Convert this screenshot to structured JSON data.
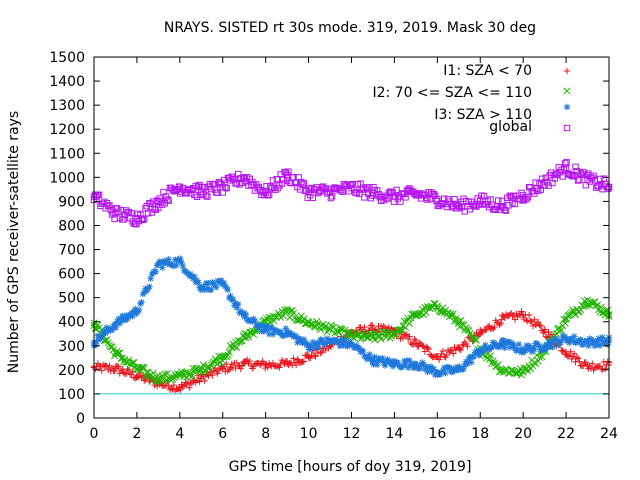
{
  "chart_data": {
    "type": "scatter",
    "title": "NRAYS. SISTED rt 30s mode. 319, 2019. Mask 30 deg",
    "xlabel": "GPS time [hours of doy 319, 2019]",
    "ylabel": "Number of GPS receiver-satellite rays",
    "xlim": [
      0,
      24
    ],
    "ylim": [
      0,
      1500
    ],
    "xticks": [
      0,
      2,
      4,
      6,
      8,
      10,
      12,
      14,
      16,
      18,
      20,
      22,
      24
    ],
    "yticks": [
      0,
      100,
      200,
      300,
      400,
      500,
      600,
      700,
      800,
      900,
      1000,
      1100,
      1200,
      1300,
      1400,
      1500
    ],
    "grid": false,
    "legend_position": "top-right",
    "reference_line": {
      "y": 100,
      "color": "#22ccdd"
    },
    "series": [
      {
        "name": "I1: SZA < 70",
        "marker": "+",
        "color": "#e8141c",
        "points": [
          [
            0,
            210
          ],
          [
            1,
            205
          ],
          [
            2,
            175
          ],
          [
            3,
            145
          ],
          [
            4,
            125
          ],
          [
            5,
            165
          ],
          [
            6,
            205
          ],
          [
            7,
            225
          ],
          [
            8,
            220
          ],
          [
            9,
            225
          ],
          [
            10,
            255
          ],
          [
            11,
            300
          ],
          [
            12,
            355
          ],
          [
            13,
            370
          ],
          [
            14,
            360
          ],
          [
            15,
            310
          ],
          [
            16,
            255
          ],
          [
            17,
            290
          ],
          [
            18,
            350
          ],
          [
            19,
            410
          ],
          [
            20,
            430
          ],
          [
            21,
            360
          ],
          [
            22,
            275
          ],
          [
            23,
            215
          ],
          [
            24,
            220
          ]
        ]
      },
      {
        "name": "I2: 70 <= SZA <= 110",
        "marker": "x",
        "color": "#1fb400",
        "points": [
          [
            0,
            395
          ],
          [
            1,
            270
          ],
          [
            2,
            205
          ],
          [
            3,
            165
          ],
          [
            4,
            175
          ],
          [
            5,
            200
          ],
          [
            6,
            255
          ],
          [
            7,
            335
          ],
          [
            8,
            400
          ],
          [
            9,
            440
          ],
          [
            10,
            395
          ],
          [
            11,
            370
          ],
          [
            12,
            340
          ],
          [
            13,
            335
          ],
          [
            14,
            350
          ],
          [
            15,
            430
          ],
          [
            16,
            465
          ],
          [
            17,
            400
          ],
          [
            18,
            290
          ],
          [
            19,
            200
          ],
          [
            20,
            190
          ],
          [
            21,
            280
          ],
          [
            22,
            410
          ],
          [
            23,
            490
          ],
          [
            24,
            430
          ]
        ]
      },
      {
        "name": "I3: SZA > 110",
        "marker": "*",
        "color": "#1e78dc",
        "points": [
          [
            0,
            315
          ],
          [
            1,
            390
          ],
          [
            2,
            445
          ],
          [
            3,
            640
          ],
          [
            4,
            650
          ],
          [
            5,
            545
          ],
          [
            6,
            555
          ],
          [
            7,
            420
          ],
          [
            8,
            365
          ],
          [
            9,
            355
          ],
          [
            10,
            300
          ],
          [
            11,
            320
          ],
          [
            12,
            305
          ],
          [
            13,
            240
          ],
          [
            14,
            225
          ],
          [
            15,
            225
          ],
          [
            16,
            190
          ],
          [
            17,
            200
          ],
          [
            18,
            280
          ],
          [
            19,
            310
          ],
          [
            20,
            285
          ],
          [
            21,
            300
          ],
          [
            22,
            330
          ],
          [
            23,
            315
          ],
          [
            24,
            320
          ]
        ]
      },
      {
        "name": "global",
        "marker": "square",
        "color": "#b414f0",
        "points": [
          [
            0,
            920
          ],
          [
            1,
            850
          ],
          [
            2,
            830
          ],
          [
            3,
            900
          ],
          [
            4,
            960
          ],
          [
            5,
            940
          ],
          [
            6,
            960
          ],
          [
            7,
            1000
          ],
          [
            8,
            935
          ],
          [
            9,
            1010
          ],
          [
            10,
            940
          ],
          [
            11,
            940
          ],
          [
            12,
            955
          ],
          [
            13,
            935
          ],
          [
            14,
            920
          ],
          [
            15,
            930
          ],
          [
            16,
            910
          ],
          [
            17,
            880
          ],
          [
            18,
            900
          ],
          [
            19,
            880
          ],
          [
            20,
            925
          ],
          [
            21,
            980
          ],
          [
            22,
            1040
          ],
          [
            23,
            990
          ],
          [
            24,
            960
          ]
        ]
      }
    ]
  }
}
